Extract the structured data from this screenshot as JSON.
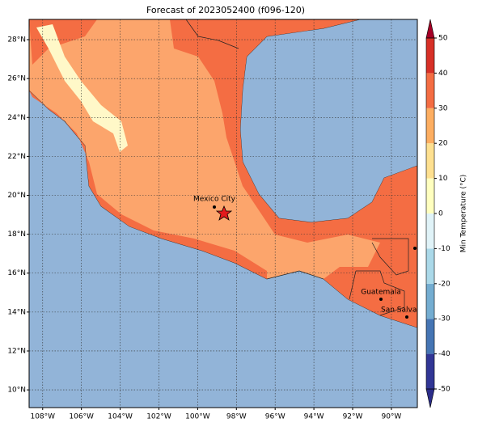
{
  "title": "Forecast of 2023052400 (f096-120)",
  "map": {
    "xlim": [
      -108.7,
      -88.66
    ],
    "ylim": [
      9.09,
      29.04
    ],
    "xticks": [
      {
        "value": -108,
        "label": "108°W"
      },
      {
        "value": -106,
        "label": "106°W"
      },
      {
        "value": -104,
        "label": "104°W"
      },
      {
        "value": -102,
        "label": "102°W"
      },
      {
        "value": -100,
        "label": "100°W"
      },
      {
        "value": -98,
        "label": "98°W"
      },
      {
        "value": -96,
        "label": "96°W"
      },
      {
        "value": -94,
        "label": "94°W"
      },
      {
        "value": -92,
        "label": "92°W"
      },
      {
        "value": -90,
        "label": "90°W"
      }
    ],
    "yticks": [
      {
        "value": 10,
        "label": "10°N"
      },
      {
        "value": 12,
        "label": "12°N"
      },
      {
        "value": 14,
        "label": "14°N"
      },
      {
        "value": 16,
        "label": "16°N"
      },
      {
        "value": 18,
        "label": "18°N"
      },
      {
        "value": 20,
        "label": "20°N"
      },
      {
        "value": 22,
        "label": "22°N"
      },
      {
        "value": 24,
        "label": "24°N"
      },
      {
        "value": 26,
        "label": "26°N"
      },
      {
        "value": 28,
        "label": "28°N"
      }
    ],
    "places": [
      "Mexico City",
      "Guatemala",
      "San Salvad"
    ]
  },
  "colorbar": {
    "label": "Min Temperature (°C)",
    "lim": [
      -55.3,
      55.3
    ],
    "ticks": [
      -50,
      -40,
      -30,
      -20,
      -10,
      0,
      10,
      20,
      30,
      40,
      50
    ],
    "colors": [
      "#313695",
      "#4575b4",
      "#74add1",
      "#abd9e9",
      "#e0f3f8",
      "#ffffbf",
      "#fee090",
      "#fdae61",
      "#f46d43",
      "#d73027"
    ],
    "under": "#2b2d8a",
    "over": "#a50026"
  }
}
